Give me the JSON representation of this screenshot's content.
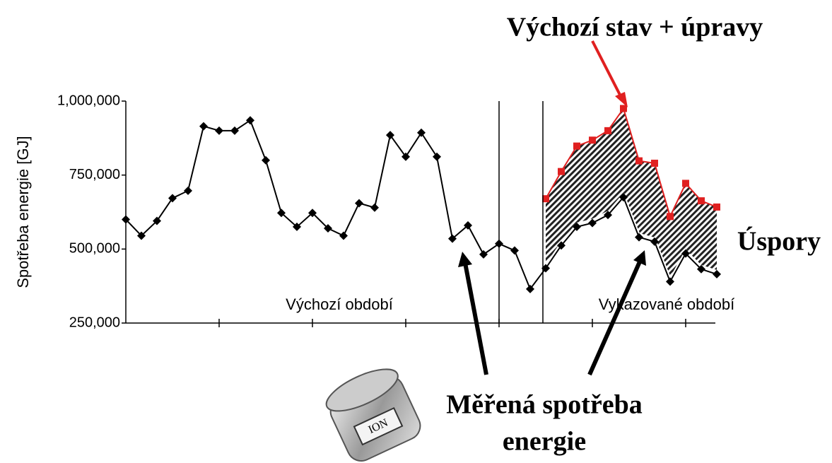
{
  "chart_data": {
    "type": "line",
    "y_label": "Spotřeba energie [GJ]",
    "annotations": [
      "Výchozí období",
      "Vykazované období",
      "Výchozí stav + úpravy",
      "Úspory",
      "Měřená spotřeba",
      "energie"
    ],
    "categories": [
      null,
      null,
      null,
      null,
      null,
      null,
      null,
      null,
      null,
      null,
      null,
      null,
      null,
      null,
      null,
      null,
      null,
      null,
      null,
      null,
      null,
      null,
      null,
      null,
      null,
      null,
      null,
      null,
      null,
      null,
      null,
      null,
      null,
      null,
      null,
      null,
      null,
      null,
      null
    ],
    "ylim": [
      250000,
      1000000
    ],
    "yticks": [
      {
        "value": 250000,
        "label": "250,000"
      },
      {
        "value": 500000,
        "label": "500,000"
      },
      {
        "value": 750000,
        "label": "750,000"
      },
      {
        "value": 1000000,
        "label": "1,000,000"
      }
    ],
    "series": [
      {
        "name": "Měřená spotřeba energie",
        "color": "#000000",
        "marker": "diamond",
        "values": [
          600000,
          545000,
          595000,
          672000,
          697000,
          915000,
          900000,
          900000,
          935000,
          800000,
          622000,
          575000,
          622000,
          570000,
          545000,
          655000,
          640000,
          885000,
          812000,
          893000,
          812000,
          535000,
          580000,
          482000,
          518000,
          495000,
          365000,
          435000,
          512000,
          575000,
          588000,
          615000,
          675000,
          540000,
          525000,
          390000,
          485000,
          432000,
          415000
        ]
      },
      {
        "name": "Výchozí stav + úpravy",
        "color": "#e02020",
        "marker": "square",
        "values": [
          null,
          null,
          null,
          null,
          null,
          null,
          null,
          null,
          null,
          null,
          null,
          null,
          null,
          null,
          null,
          null,
          null,
          null,
          null,
          null,
          null,
          null,
          null,
          null,
          null,
          null,
          null,
          670000,
          762000,
          848000,
          868000,
          900000,
          975000,
          798000,
          790000,
          610000,
          722000,
          663000,
          642000
        ]
      }
    ]
  }
}
